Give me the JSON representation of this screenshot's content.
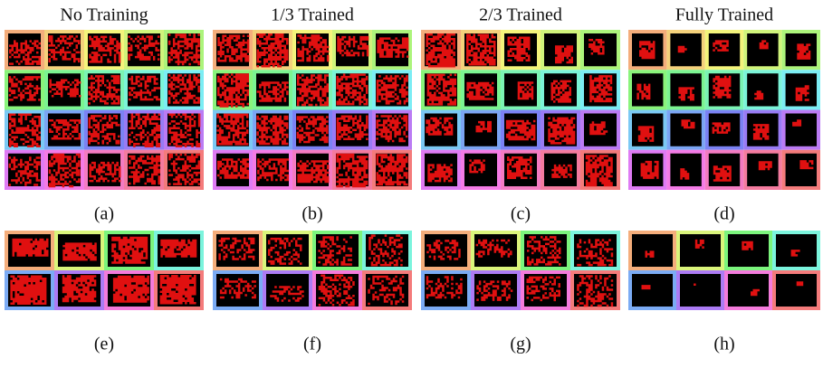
{
  "titles": [
    "No Training",
    "1/3 Trained",
    "2/3 Trained",
    "Fully Trained"
  ],
  "captions": [
    "(a)",
    "(b)",
    "(c)",
    "(d)",
    "(e)",
    "(f)",
    "(g)",
    "(h)"
  ]
}
